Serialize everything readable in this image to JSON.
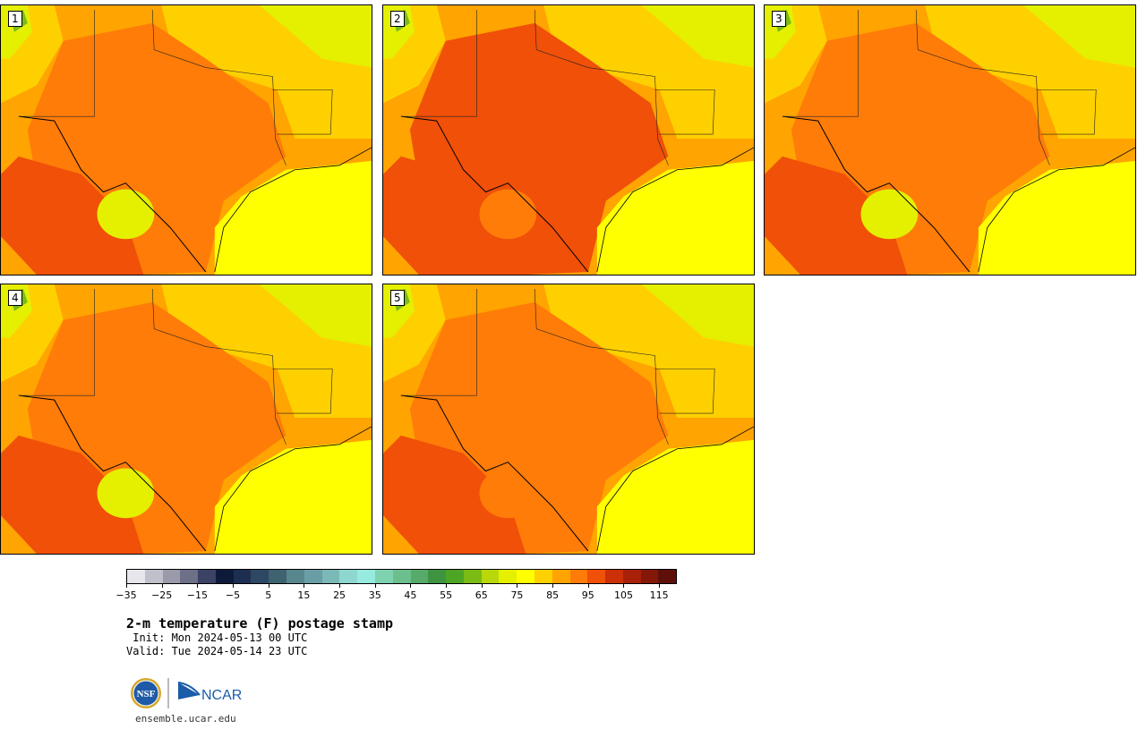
{
  "stamps": [
    {
      "label": "1"
    },
    {
      "label": "2"
    },
    {
      "label": "3"
    },
    {
      "label": "4"
    },
    {
      "label": "5"
    }
  ],
  "colorbar": {
    "colors": [
      "#e6e6ec",
      "#c0c0cc",
      "#9a9aaa",
      "#6e7088",
      "#3a4266",
      "#0e1a3a",
      "#1e2e50",
      "#2c4862",
      "#3e6270",
      "#57878c",
      "#6a9ea6",
      "#7ab9b8",
      "#8ed7d0",
      "#96eade",
      "#7ed2b0",
      "#6cbf8c",
      "#56aa6a",
      "#3e9440",
      "#4ea524",
      "#7bbb16",
      "#b8d80c",
      "#e4f000",
      "#ffff00",
      "#ffd000",
      "#ffa400",
      "#ff7c08",
      "#f05008",
      "#cc3008",
      "#a82008",
      "#841808",
      "#5e1008"
    ],
    "tick_labels": [
      "−35",
      "−25",
      "−15",
      "−5",
      "5",
      "15",
      "25",
      "35",
      "45",
      "55",
      "65",
      "75",
      "85",
      "95",
      "105",
      "115"
    ]
  },
  "title": "2-m temperature (F) postage stamp",
  "init": " Init: Mon 2024-05-13 00 UTC",
  "valid": "Valid: Tue 2024-05-14 23 UTC",
  "logo": {
    "left_text": "NSF",
    "right_text": "NCAR"
  },
  "url": "ensemble.ucar.edu",
  "colors": {
    "gulf": "#ffff00",
    "warm": "#ffa400",
    "hot": "#ff7c08",
    "hotter": "#f05008",
    "cool": "#ffd000",
    "mild": "#e4f000",
    "green": "#7bbb16"
  }
}
